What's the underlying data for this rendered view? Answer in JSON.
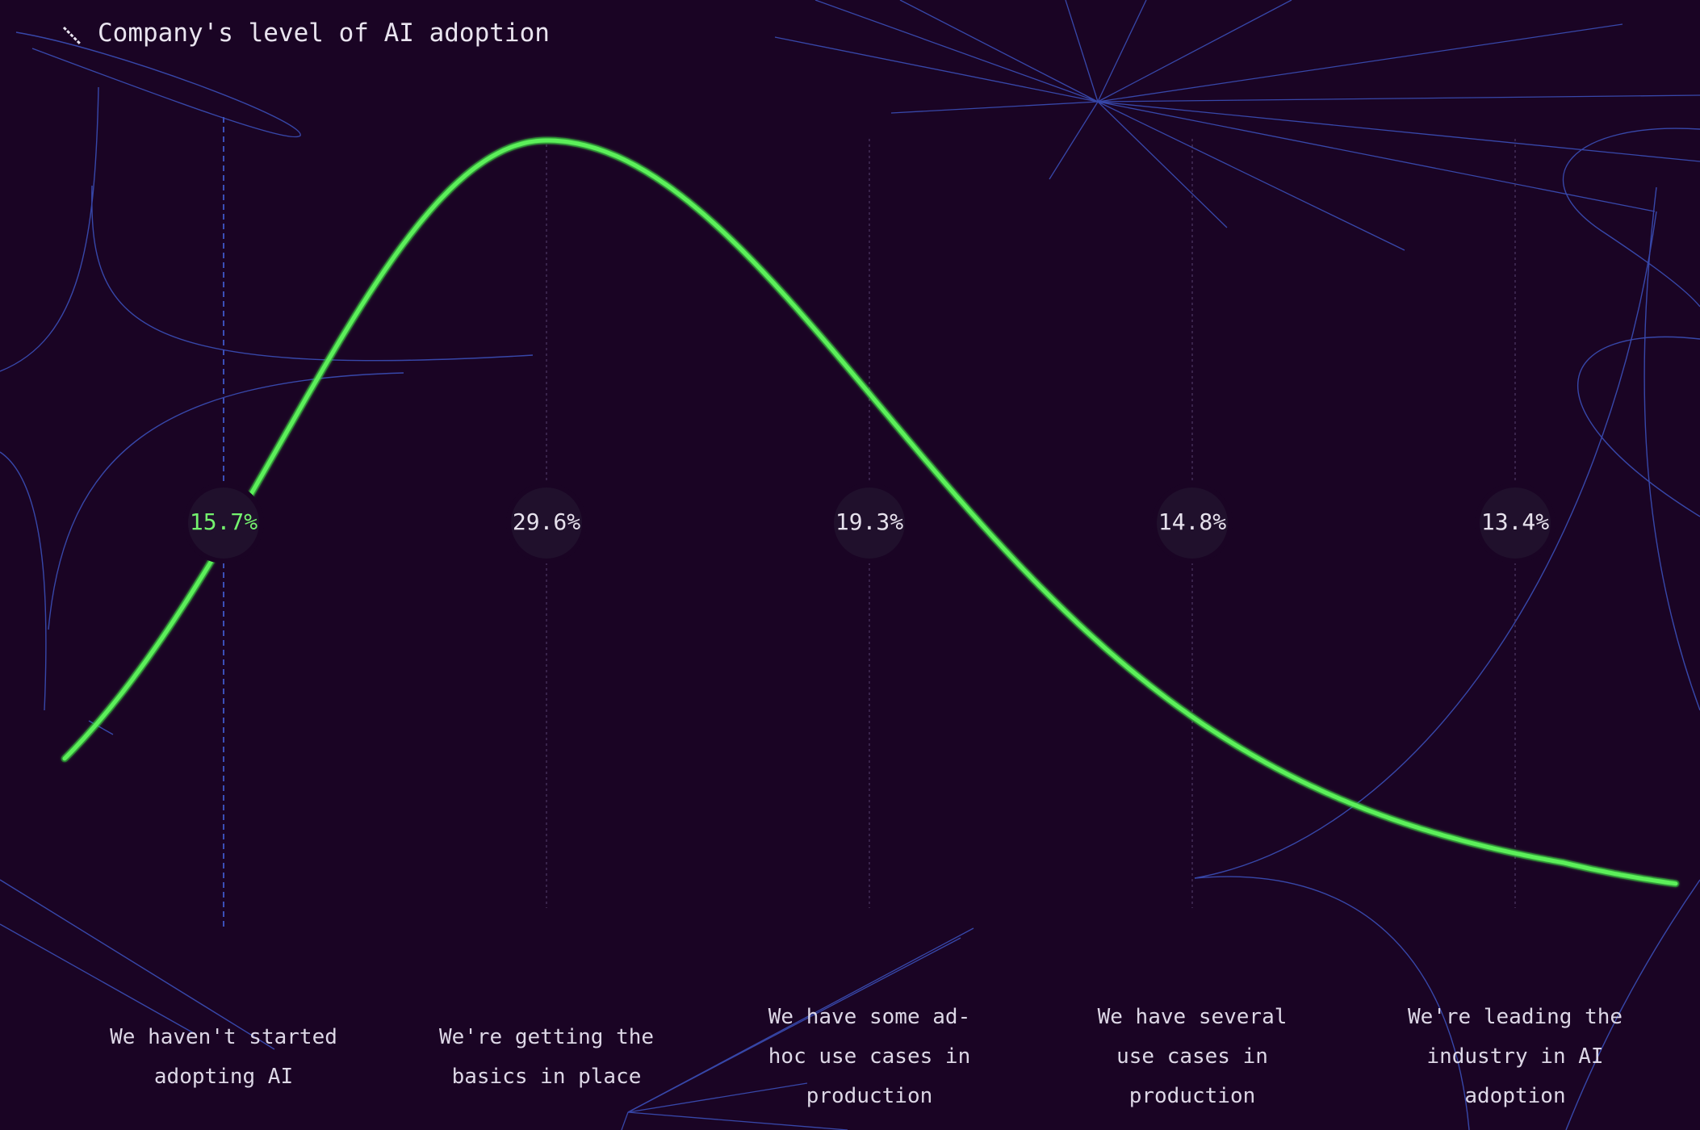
{
  "colors": {
    "background": "#1a0424",
    "curve": "#5cf05a",
    "decor": "#3b4fb8",
    "highlight_label": "#74f26e",
    "label": "#e6e1ec"
  },
  "chart_data": {
    "type": "line",
    "title": "Company's level of AI adoption",
    "title_icon": "diagonal-slash-icon",
    "categories": [
      "We haven't started adopting AI",
      "We're getting the basics in place",
      "We have some ad-hoc use cases in production",
      "We have several use cases in production",
      "We're leading the industry in AI adoption"
    ],
    "category_lines": [
      [
        "We haven't started",
        "adopting AI"
      ],
      [
        "We're getting the",
        "basics in place"
      ],
      [
        "We have some ad-",
        "hoc use cases in",
        "production"
      ],
      [
        "We have several",
        "use cases in",
        "production"
      ],
      [
        "We're leading the",
        "industry in AI",
        "adoption"
      ]
    ],
    "values": [
      15.7,
      29.6,
      19.3,
      14.8,
      13.4
    ],
    "value_labels": [
      "15.7%",
      "29.6%",
      "19.3%",
      "14.8%",
      "13.4%"
    ],
    "highlighted_index": 0,
    "grid": false,
    "legend": "none"
  }
}
